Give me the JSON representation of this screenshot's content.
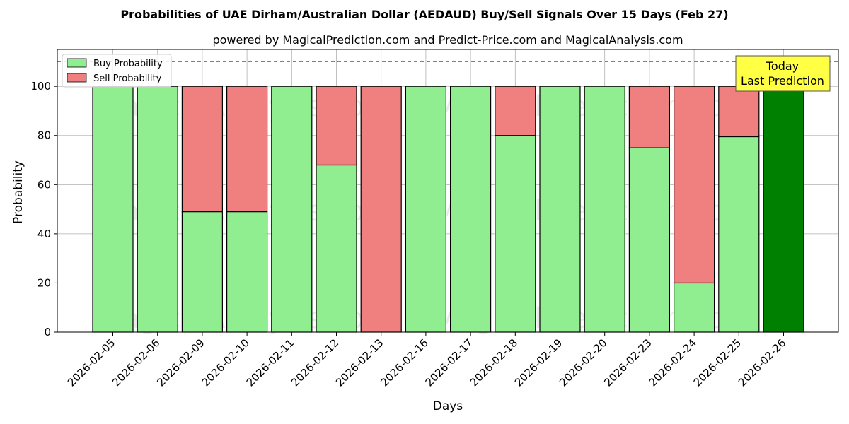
{
  "chart_data": {
    "type": "bar",
    "stacked": true,
    "title": "Probabilities of UAE Dirham/Australian Dollar (AEDAUD) Buy/Sell Signals Over 15 Days (Feb 27)",
    "subtitle": "powered by MagicalPrediction.com and Predict-Price.com and MagicalAnalysis.com",
    "xlabel": "Days",
    "ylabel": "Probability",
    "ylim": [
      0,
      115
    ],
    "yticks": [
      0,
      20,
      40,
      60,
      80,
      100
    ],
    "reference_line": 110,
    "grid": true,
    "legend_position": "top-left",
    "categories": [
      "2026-02-05",
      "2026-02-06",
      "2026-02-09",
      "2026-02-10",
      "2026-02-11",
      "2026-02-12",
      "2026-02-13",
      "2026-02-16",
      "2026-02-17",
      "2026-02-18",
      "2026-02-19",
      "2026-02-20",
      "2026-02-23",
      "2026-02-24",
      "2026-02-25",
      "2026-02-26"
    ],
    "series": [
      {
        "name": "Buy Probability",
        "color": "#90ee90",
        "values": [
          100,
          100,
          49,
          49,
          100,
          68,
          0,
          100,
          100,
          80,
          100,
          100,
          75,
          20,
          79.5,
          100
        ]
      },
      {
        "name": "Sell Probability",
        "color": "#f08080",
        "values": [
          0,
          0,
          51,
          51,
          0,
          32,
          100,
          0,
          0,
          20,
          0,
          0,
          25,
          80,
          20.5,
          0
        ]
      }
    ],
    "highlight": {
      "index": 15,
      "color": "#008000"
    },
    "annotation": {
      "line1": "Today",
      "line2": "Last Prediction",
      "background": "#ffff44"
    },
    "watermarks": [
      "MagicalAnalysis.com",
      "MagicalPrediction.com"
    ]
  }
}
